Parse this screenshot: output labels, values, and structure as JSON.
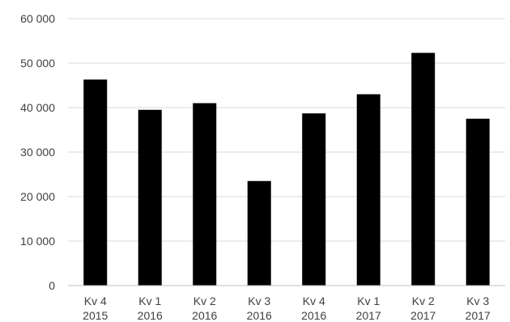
{
  "chart_data": {
    "type": "bar",
    "title": "",
    "xlabel": "",
    "ylabel": "",
    "categories": [
      [
        "Kv 4",
        "2015"
      ],
      [
        "Kv 1",
        "2016"
      ],
      [
        "Kv 2",
        "2016"
      ],
      [
        "Kv 3",
        "2016"
      ],
      [
        "Kv 4",
        "2016"
      ],
      [
        "Kv 1",
        "2017"
      ],
      [
        "Kv 2",
        "2017"
      ],
      [
        "Kv 3",
        "2017"
      ]
    ],
    "values": [
      46300,
      39500,
      41000,
      23500,
      38700,
      43000,
      52300,
      37500
    ],
    "ylim": [
      0,
      60000
    ],
    "yticks": [
      0,
      10000,
      20000,
      30000,
      40000,
      50000,
      60000
    ],
    "ytick_labels": [
      "0",
      "10 000",
      "20 000",
      "30 000",
      "40 000",
      "50 000",
      "60 000"
    ],
    "grid": true,
    "legend": "none",
    "bar_color": "#000000"
  }
}
